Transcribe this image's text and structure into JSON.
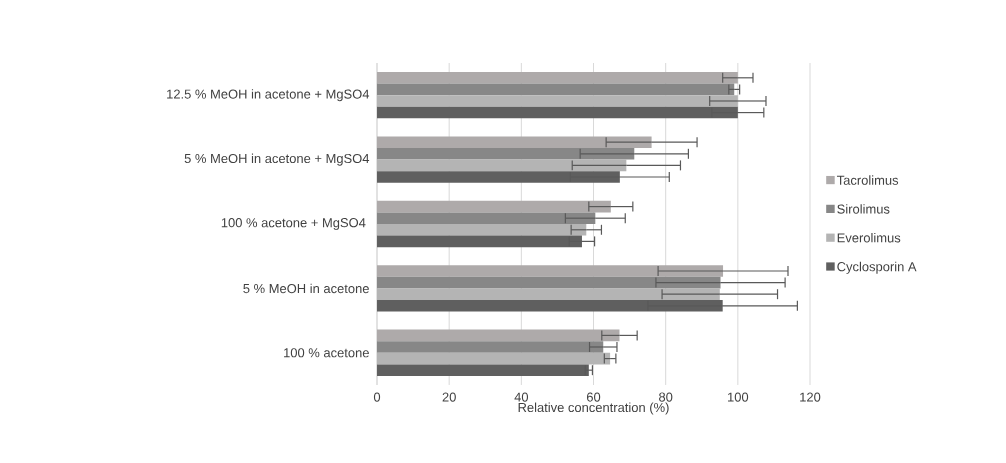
{
  "chart_data": {
    "type": "bar",
    "orientation": "horizontal",
    "xlabel": "Relative concentration (%)",
    "categories": [
      "12.5 % MeOH in acetone + MgSO4",
      "5 % MeOH in acetone + MgSO4",
      "100 % acetone + MgSO4 ",
      "5 % MeOH in acetone",
      "100 % acetone"
    ],
    "series": [
      {
        "name": "Tacrolimus",
        "color": "#aeaaaa",
        "values": [
          100,
          76.1,
          64.8,
          95.9,
          67.2
        ],
        "errors": [
          4.2,
          12.6,
          6.1,
          18.0,
          4.9
        ]
      },
      {
        "name": "Sirolimus",
        "color": "#878787",
        "values": [
          99.0,
          71.3,
          60.5,
          95.2,
          62.7
        ],
        "errors": [
          1.5,
          15.0,
          8.3,
          17.9,
          3.8
        ]
      },
      {
        "name": "Everolimus",
        "color": "#b4b4b4",
        "values": [
          100,
          69.1,
          58.0,
          95.0,
          64.6
        ],
        "errors": [
          7.8,
          15.0,
          4.2,
          16.0,
          1.6
        ]
      },
      {
        "name": "Cyclosporin A",
        "color": "#5f5f5f",
        "values": [
          100,
          67.3,
          56.8,
          95.8,
          58.7
        ],
        "errors": [
          7.2,
          13.7,
          3.5,
          20.7,
          1.0
        ]
      }
    ],
    "xlim": [
      0,
      120
    ],
    "xticks": [
      0,
      20,
      40,
      60,
      80,
      100,
      120
    ],
    "grid": "x",
    "legend": "right"
  }
}
